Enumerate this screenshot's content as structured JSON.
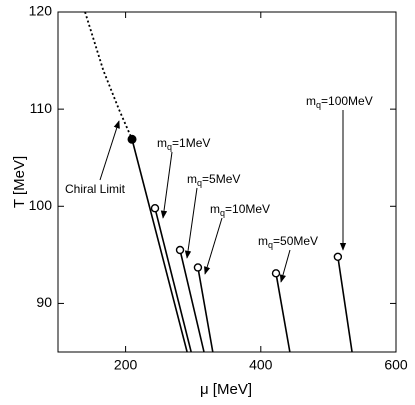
{
  "chart_data": {
    "type": "line",
    "xlabel": "μ [MeV]",
    "ylabel": "T [MeV]",
    "xlim": [
      100,
      600
    ],
    "ylim": [
      85,
      120
    ],
    "xticks": [
      200,
      400,
      600
    ],
    "yticks": [
      90,
      100,
      110,
      120
    ],
    "color": "#000000",
    "series": [
      {
        "name": "Chiral Limit",
        "style": "dotted",
        "x": [
          140,
          167,
          190,
          209.5
        ],
        "y": [
          120,
          114,
          110,
          106.9
        ]
      },
      {
        "style": "solid",
        "marker": "filled",
        "x": [
          209.5,
          291
        ],
        "y": [
          106.9,
          85
        ]
      },
      {
        "name": {
          "main": "m",
          "sub": "q",
          "rest": "=1MeV"
        },
        "style": "solid",
        "marker": "open",
        "x": [
          243.5,
          297
        ],
        "y": [
          99.8,
          85
        ]
      },
      {
        "name": {
          "main": "m",
          "sub": "q",
          "rest": "=5MeV"
        },
        "style": "solid",
        "marker": "open",
        "x": [
          280.5,
          316
        ],
        "y": [
          95.5,
          85
        ]
      },
      {
        "name": {
          "main": "m",
          "sub": "q",
          "rest": "=10MeV"
        },
        "style": "solid",
        "marker": "open",
        "x": [
          307,
          329
        ],
        "y": [
          93.7,
          85
        ]
      },
      {
        "name": {
          "main": "m",
          "sub": "q",
          "rest": "=50MeV"
        },
        "style": "solid",
        "marker": "open",
        "x": [
          422.5,
          443
        ],
        "y": [
          93.1,
          85
        ]
      },
      {
        "name": {
          "main": "m",
          "sub": "q",
          "rest": "=100MeV"
        },
        "style": "solid",
        "marker": "open",
        "x": [
          514,
          535
        ],
        "y": [
          94.8,
          85
        ]
      }
    ]
  }
}
